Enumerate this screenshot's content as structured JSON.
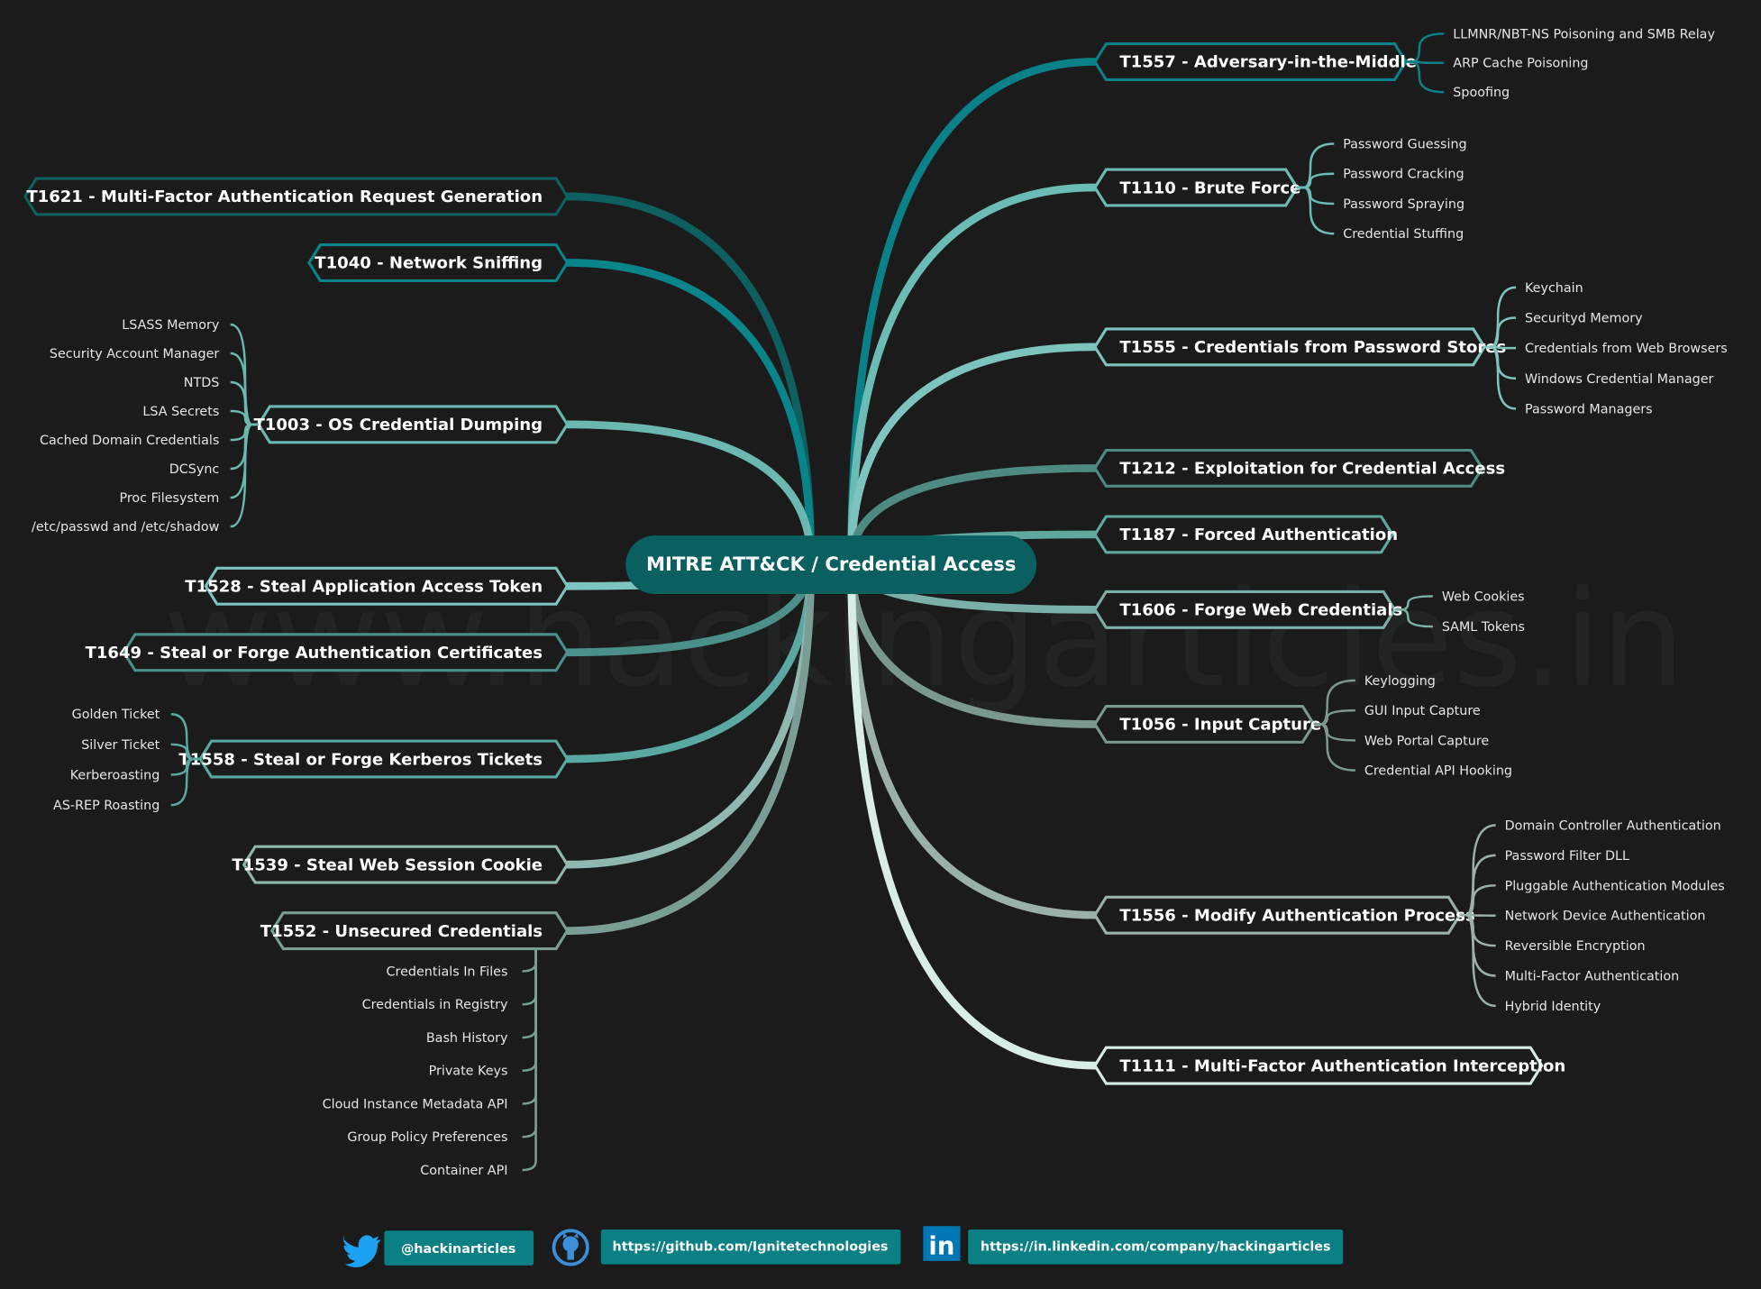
{
  "watermark": "www.hackingarticles.in",
  "center": {
    "title": "MITRE ATT&CK / Credential Access",
    "color": "#0a5f60"
  },
  "topics": [
    {
      "id": "t1621",
      "title": "T1621 -  Multi-Factor Authentication Request Generation",
      "side": "left",
      "color": "#0d5f60",
      "subs": []
    },
    {
      "id": "t1040",
      "title": "T1040 -  Network Sniffing",
      "side": "left",
      "color": "#08848a",
      "subs": []
    },
    {
      "id": "t1003",
      "title": "T1003 -  OS Credential Dumping",
      "side": "left",
      "color": "#6ab8b0",
      "subs": [
        "LSASS Memory",
        "Security Account Manager",
        "NTDS",
        "LSA Secrets",
        "Cached Domain Credentials",
        "DCSync",
        "Proc Filesystem",
        "/etc/passwd and /etc/shadow"
      ]
    },
    {
      "id": "t1528",
      "title": "T1528 -  Steal Application Access Token",
      "side": "left",
      "color": "#7cc4bf",
      "subs": []
    },
    {
      "id": "t1649",
      "title": "T1649 -  Steal or Forge Authentication Certificates",
      "side": "left",
      "color": "#4a8f8a",
      "subs": []
    },
    {
      "id": "t1558",
      "title": "T1558 -  Steal or Forge Kerberos Tickets",
      "side": "left",
      "color": "#5aa8a2",
      "subs": [
        "Golden Ticket",
        "Silver Ticket",
        "Kerberoasting",
        "AS-REP Roasting"
      ]
    },
    {
      "id": "t1539",
      "title": "T1539 -  Steal Web Session Cookie",
      "side": "left",
      "color": "#8fb8b0",
      "subs": []
    },
    {
      "id": "t1552",
      "title": "T1552 -  Unsecured Credentials",
      "side": "left",
      "color": "#7a9e96",
      "subs": [
        "Credentials In Files",
        "Credentials in Registry",
        "Bash History",
        "Private Keys",
        "Cloud Instance Metadata API",
        "Group Policy Preferences",
        "Container API"
      ]
    },
    {
      "id": "t1557",
      "title": "T1557 - Adversary-in-the-Middle",
      "side": "right",
      "color": "#0a8088",
      "subs": [
        "LLMNR/NBT-NS Poisoning and SMB Relay",
        "ARP Cache Poisoning",
        "Spoofing"
      ]
    },
    {
      "id": "t1110",
      "title": "T1110 - Brute Force",
      "side": "right",
      "color": "#6bbcb4",
      "subs": [
        "Password Guessing",
        "Password Cracking",
        "Password Spraying",
        "Credential Stuffing"
      ]
    },
    {
      "id": "t1555",
      "title": "T1555 -  Credentials from Password Stores",
      "side": "right",
      "color": "#7ec4be",
      "subs": [
        "Keychain",
        "Securityd Memory",
        "Credentials from Web Browsers",
        "Windows Credential Manager",
        "Password Managers"
      ]
    },
    {
      "id": "t1212",
      "title": "T1212 -  Exploitation for Credential Access",
      "side": "right",
      "color": "#4e8a82",
      "subs": []
    },
    {
      "id": "t1187",
      "title": "T1187 -  Forced Authentication",
      "side": "right",
      "color": "#5fa8a0",
      "subs": []
    },
    {
      "id": "t1606",
      "title": "T1606 -  Forge Web Credentials",
      "side": "right",
      "color": "#7bb0a8",
      "subs": [
        "Web Cookies",
        "SAML Tokens"
      ]
    },
    {
      "id": "t1056",
      "title": "T1056 -  Input Capture",
      "side": "right",
      "color": "#7a9890",
      "subs": [
        "Keylogging",
        "GUI Input Capture",
        "Web Portal Capture",
        "Credential API Hooking"
      ]
    },
    {
      "id": "t1556",
      "title": "T1556 -  Modify Authentication Process",
      "side": "right",
      "color": "#9cb0aa",
      "subs": [
        "Domain Controller Authentication",
        "Password Filter DLL",
        "Pluggable Authentication Modules",
        "Network Device Authentication",
        "Reversible Encryption",
        "Multi-Factor Authentication",
        "Hybrid Identity"
      ]
    },
    {
      "id": "t1111",
      "title": "T1111 -  Multi-Factor Authentication Interception",
      "side": "right",
      "color": "#d8ece8",
      "subs": []
    }
  ],
  "footer": {
    "twitter": {
      "label": "@hackinarticles",
      "icon": "twitter-bird-icon",
      "color": "#1da1f2"
    },
    "github": {
      "label": "https://github.com/Ignitetechnologies",
      "icon": "github-octocat-icon",
      "color": "#3b8fd9"
    },
    "linkedin": {
      "label": "https://in.linkedin.com/company/hackingarticles",
      "icon": "linkedin-icon",
      "color": "#0077b5"
    },
    "badge_color": "#0a7f84"
  }
}
